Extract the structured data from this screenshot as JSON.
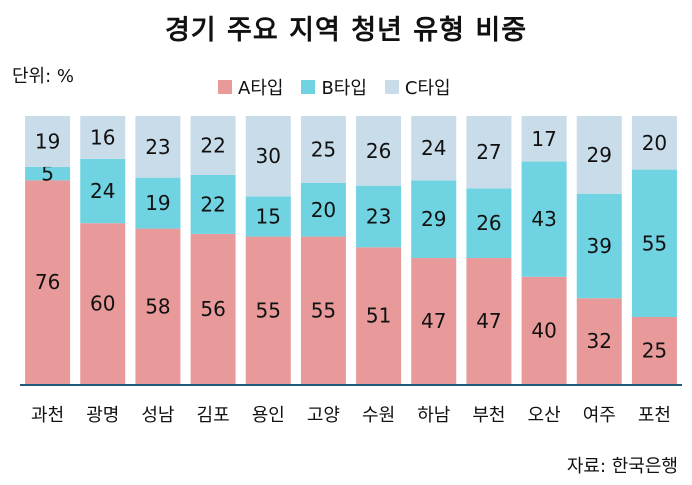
{
  "title": "경기 주요 지역 청년 유형 비중",
  "unit_label": "단위: %",
  "source": "자료: 한국은행",
  "colors": {
    "A": "#e8999a",
    "B": "#6fd3e1",
    "C": "#c9dcea",
    "axis": "#1f5a7a"
  },
  "chart_data": {
    "type": "bar",
    "stacked": true,
    "categories": [
      "과천",
      "광명",
      "성남",
      "김포",
      "용인",
      "고양",
      "수원",
      "하남",
      "부천",
      "오산",
      "여주",
      "포천"
    ],
    "series": [
      {
        "name": "A타입",
        "values": [
          76,
          60,
          58,
          56,
          55,
          55,
          51,
          47,
          47,
          40,
          32,
          25
        ]
      },
      {
        "name": "B타입",
        "values": [
          5,
          24,
          19,
          22,
          15,
          20,
          23,
          29,
          26,
          43,
          39,
          55
        ]
      },
      {
        "name": "C타입",
        "values": [
          19,
          16,
          23,
          22,
          30,
          25,
          26,
          24,
          27,
          17,
          29,
          20
        ]
      }
    ],
    "ylim": [
      0,
      100
    ],
    "legend_position": "top",
    "grid": false
  }
}
